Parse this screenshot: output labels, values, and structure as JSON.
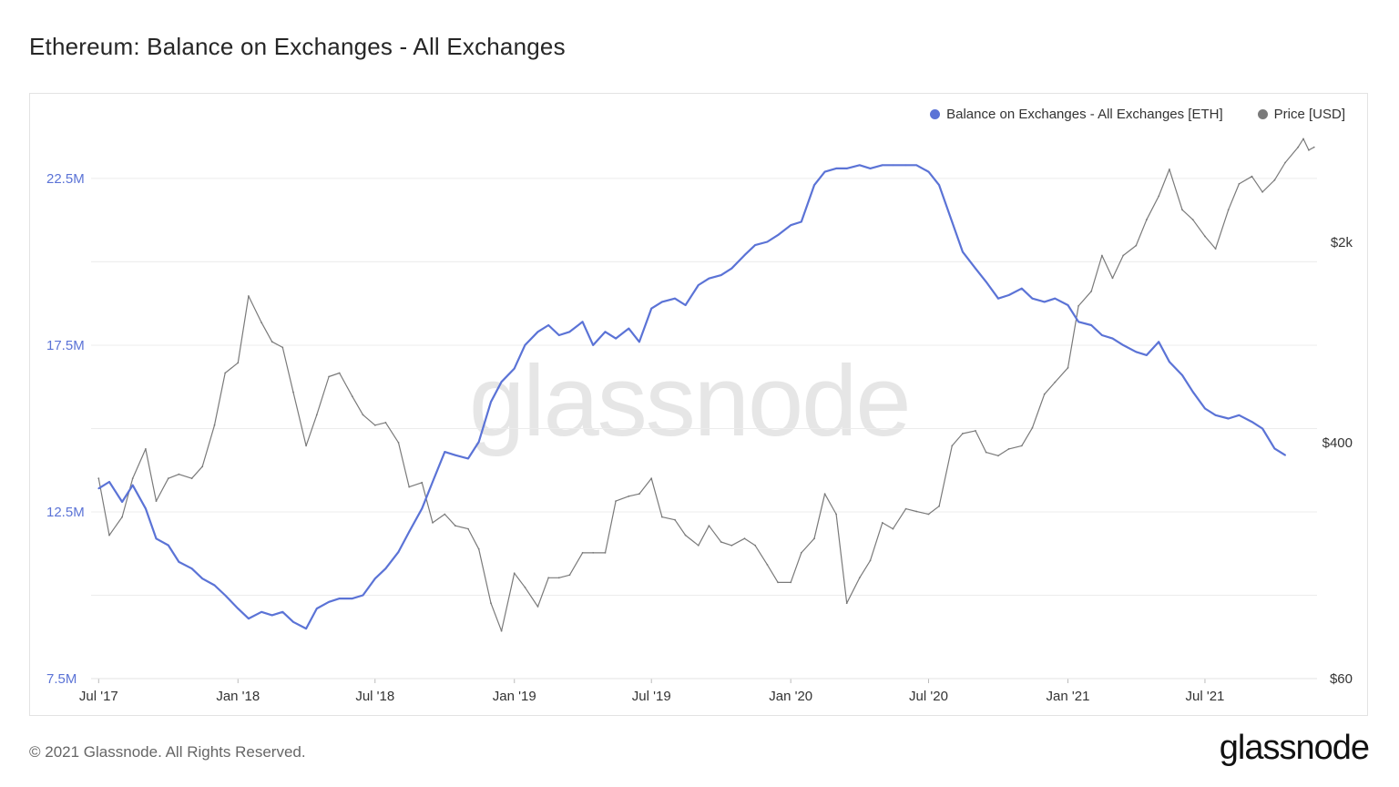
{
  "title": "Ethereum: Balance on Exchanges - All Exchanges",
  "footer": {
    "copyright": "© 2021 Glassnode. All Rights Reserved.",
    "logo": "glassnode"
  },
  "watermark": "glassnode",
  "colors": {
    "balance": "#5b73d6",
    "price": "#7a7a7a",
    "grid": "#ececec"
  },
  "chart_data": {
    "type": "line",
    "title": "Ethereum: Balance on Exchanges - All Exchanges",
    "legend_position": "top-right",
    "grid": true,
    "x_ticks": [
      "Jul '17",
      "Jan '18",
      "Jul '18",
      "Jan '19",
      "Jul '19",
      "Jan '20",
      "Jul '20",
      "Jan '21",
      "Jul '21"
    ],
    "y_left": {
      "ticks": [
        "7.5M",
        "12.5M",
        "17.5M",
        "22.5M"
      ],
      "range": [
        7500000,
        24000000
      ]
    },
    "y_right": {
      "scale": "log",
      "ticks": [
        "$60",
        "$400",
        "$2k"
      ],
      "range": [
        60,
        5000
      ]
    },
    "series": [
      {
        "name": "Balance on Exchanges - All Exchanges [ETH]",
        "axis": "left",
        "points": [
          [
            "2017-07-01",
            13200000
          ],
          [
            "2017-07-15",
            13400000
          ],
          [
            "2017-08-01",
            12800000
          ],
          [
            "2017-08-15",
            13300000
          ],
          [
            "2017-09-01",
            12600000
          ],
          [
            "2017-09-15",
            11700000
          ],
          [
            "2017-10-01",
            11500000
          ],
          [
            "2017-10-15",
            11000000
          ],
          [
            "2017-11-01",
            10800000
          ],
          [
            "2017-11-15",
            10500000
          ],
          [
            "2017-12-01",
            10300000
          ],
          [
            "2017-12-15",
            10000000
          ],
          [
            "2018-01-01",
            9600000
          ],
          [
            "2018-01-15",
            9300000
          ],
          [
            "2018-02-01",
            9500000
          ],
          [
            "2018-02-15",
            9400000
          ],
          [
            "2018-03-01",
            9500000
          ],
          [
            "2018-03-15",
            9200000
          ],
          [
            "2018-04-01",
            9000000
          ],
          [
            "2018-04-15",
            9600000
          ],
          [
            "2018-05-01",
            9800000
          ],
          [
            "2018-05-15",
            9900000
          ],
          [
            "2018-06-01",
            9900000
          ],
          [
            "2018-06-15",
            10000000
          ],
          [
            "2018-07-01",
            10500000
          ],
          [
            "2018-07-15",
            10800000
          ],
          [
            "2018-08-01",
            11300000
          ],
          [
            "2018-08-15",
            11900000
          ],
          [
            "2018-09-01",
            12600000
          ],
          [
            "2018-09-15",
            13400000
          ],
          [
            "2018-10-01",
            14300000
          ],
          [
            "2018-10-15",
            14200000
          ],
          [
            "2018-11-01",
            14100000
          ],
          [
            "2018-11-15",
            14600000
          ],
          [
            "2018-12-01",
            15800000
          ],
          [
            "2018-12-15",
            16400000
          ],
          [
            "2019-01-01",
            16800000
          ],
          [
            "2019-01-15",
            17500000
          ],
          [
            "2019-02-01",
            17900000
          ],
          [
            "2019-02-15",
            18100000
          ],
          [
            "2019-03-01",
            17800000
          ],
          [
            "2019-03-15",
            17900000
          ],
          [
            "2019-04-01",
            18200000
          ],
          [
            "2019-04-15",
            17500000
          ],
          [
            "2019-05-01",
            17900000
          ],
          [
            "2019-05-15",
            17700000
          ],
          [
            "2019-06-01",
            18000000
          ],
          [
            "2019-06-15",
            17600000
          ],
          [
            "2019-07-01",
            18600000
          ],
          [
            "2019-07-15",
            18800000
          ],
          [
            "2019-08-01",
            18900000
          ],
          [
            "2019-08-15",
            18700000
          ],
          [
            "2019-09-01",
            19300000
          ],
          [
            "2019-09-15",
            19500000
          ],
          [
            "2019-10-01",
            19600000
          ],
          [
            "2019-10-15",
            19800000
          ],
          [
            "2019-11-01",
            20200000
          ],
          [
            "2019-11-15",
            20500000
          ],
          [
            "2019-12-01",
            20600000
          ],
          [
            "2019-12-15",
            20800000
          ],
          [
            "2020-01-01",
            21100000
          ],
          [
            "2020-01-15",
            21200000
          ],
          [
            "2020-02-01",
            22300000
          ],
          [
            "2020-02-15",
            22700000
          ],
          [
            "2020-03-01",
            22800000
          ],
          [
            "2020-03-15",
            22800000
          ],
          [
            "2020-04-01",
            22900000
          ],
          [
            "2020-04-15",
            22800000
          ],
          [
            "2020-05-01",
            22900000
          ],
          [
            "2020-05-15",
            22900000
          ],
          [
            "2020-06-01",
            22900000
          ],
          [
            "2020-06-15",
            22900000
          ],
          [
            "2020-07-01",
            22700000
          ],
          [
            "2020-07-15",
            22300000
          ],
          [
            "2020-08-01",
            21200000
          ],
          [
            "2020-08-15",
            20300000
          ],
          [
            "2020-09-01",
            19800000
          ],
          [
            "2020-09-15",
            19400000
          ],
          [
            "2020-10-01",
            18900000
          ],
          [
            "2020-10-15",
            19000000
          ],
          [
            "2020-11-01",
            19200000
          ],
          [
            "2020-11-15",
            18900000
          ],
          [
            "2020-12-01",
            18800000
          ],
          [
            "2020-12-15",
            18900000
          ],
          [
            "2021-01-01",
            18700000
          ],
          [
            "2021-01-15",
            18200000
          ],
          [
            "2021-02-01",
            18100000
          ],
          [
            "2021-02-15",
            17800000
          ],
          [
            "2021-03-01",
            17700000
          ],
          [
            "2021-03-15",
            17500000
          ],
          [
            "2021-04-01",
            17300000
          ],
          [
            "2021-04-15",
            17200000
          ],
          [
            "2021-05-01",
            17600000
          ],
          [
            "2021-05-15",
            17000000
          ],
          [
            "2021-06-01",
            16600000
          ],
          [
            "2021-06-15",
            16100000
          ],
          [
            "2021-07-01",
            15600000
          ],
          [
            "2021-07-15",
            15400000
          ],
          [
            "2021-08-01",
            15300000
          ],
          [
            "2021-08-15",
            15400000
          ],
          [
            "2021-09-01",
            15200000
          ],
          [
            "2021-09-15",
            15000000
          ],
          [
            "2021-10-01",
            14400000
          ],
          [
            "2021-10-15",
            14200000
          ]
        ]
      },
      {
        "name": "Price [USD]",
        "axis": "right",
        "points": [
          [
            "2017-07-01",
            300
          ],
          [
            "2017-07-15",
            190
          ],
          [
            "2017-08-01",
            220
          ],
          [
            "2017-08-15",
            300
          ],
          [
            "2017-09-01",
            380
          ],
          [
            "2017-09-15",
            250
          ],
          [
            "2017-10-01",
            300
          ],
          [
            "2017-10-15",
            310
          ],
          [
            "2017-11-01",
            300
          ],
          [
            "2017-11-15",
            330
          ],
          [
            "2017-12-01",
            460
          ],
          [
            "2017-12-15",
            700
          ],
          [
            "2018-01-01",
            760
          ],
          [
            "2018-01-15",
            1300
          ],
          [
            "2018-02-01",
            1050
          ],
          [
            "2018-02-15",
            900
          ],
          [
            "2018-03-01",
            860
          ],
          [
            "2018-03-15",
            600
          ],
          [
            "2018-04-01",
            390
          ],
          [
            "2018-04-15",
            500
          ],
          [
            "2018-05-01",
            680
          ],
          [
            "2018-05-15",
            700
          ],
          [
            "2018-06-01",
            580
          ],
          [
            "2018-06-15",
            500
          ],
          [
            "2018-07-01",
            460
          ],
          [
            "2018-07-15",
            470
          ],
          [
            "2018-08-01",
            400
          ],
          [
            "2018-08-15",
            280
          ],
          [
            "2018-09-01",
            290
          ],
          [
            "2018-09-15",
            210
          ],
          [
            "2018-10-01",
            225
          ],
          [
            "2018-10-15",
            205
          ],
          [
            "2018-11-01",
            200
          ],
          [
            "2018-11-15",
            170
          ],
          [
            "2018-12-01",
            110
          ],
          [
            "2018-12-15",
            88
          ],
          [
            "2019-01-01",
            140
          ],
          [
            "2019-01-15",
            125
          ],
          [
            "2019-02-01",
            107
          ],
          [
            "2019-02-15",
            135
          ],
          [
            "2019-03-01",
            135
          ],
          [
            "2019-03-15",
            138
          ],
          [
            "2019-04-01",
            165
          ],
          [
            "2019-04-15",
            165
          ],
          [
            "2019-05-01",
            165
          ],
          [
            "2019-05-15",
            250
          ],
          [
            "2019-06-01",
            260
          ],
          [
            "2019-06-15",
            265
          ],
          [
            "2019-07-01",
            300
          ],
          [
            "2019-07-15",
            220
          ],
          [
            "2019-08-01",
            215
          ],
          [
            "2019-08-15",
            190
          ],
          [
            "2019-09-01",
            175
          ],
          [
            "2019-09-15",
            205
          ],
          [
            "2019-10-01",
            180
          ],
          [
            "2019-10-15",
            175
          ],
          [
            "2019-11-01",
            185
          ],
          [
            "2019-11-15",
            175
          ],
          [
            "2019-12-01",
            150
          ],
          [
            "2019-12-15",
            130
          ],
          [
            "2020-01-01",
            130
          ],
          [
            "2020-01-15",
            165
          ],
          [
            "2020-02-01",
            185
          ],
          [
            "2020-02-15",
            265
          ],
          [
            "2020-03-01",
            225
          ],
          [
            "2020-03-15",
            110
          ],
          [
            "2020-04-01",
            135
          ],
          [
            "2020-04-15",
            155
          ],
          [
            "2020-05-01",
            210
          ],
          [
            "2020-05-15",
            200
          ],
          [
            "2020-06-01",
            235
          ],
          [
            "2020-06-15",
            230
          ],
          [
            "2020-07-01",
            225
          ],
          [
            "2020-07-15",
            240
          ],
          [
            "2020-08-01",
            390
          ],
          [
            "2020-08-15",
            430
          ],
          [
            "2020-09-01",
            440
          ],
          [
            "2020-09-15",
            370
          ],
          [
            "2020-10-01",
            360
          ],
          [
            "2020-10-15",
            380
          ],
          [
            "2020-11-01",
            390
          ],
          [
            "2020-11-15",
            450
          ],
          [
            "2020-12-01",
            590
          ],
          [
            "2020-12-15",
            650
          ],
          [
            "2021-01-01",
            730
          ],
          [
            "2021-01-15",
            1200
          ],
          [
            "2021-02-01",
            1350
          ],
          [
            "2021-02-15",
            1800
          ],
          [
            "2021-03-01",
            1500
          ],
          [
            "2021-03-15",
            1800
          ],
          [
            "2021-04-01",
            1950
          ],
          [
            "2021-04-15",
            2400
          ],
          [
            "2021-05-01",
            2900
          ],
          [
            "2021-05-15",
            3600
          ],
          [
            "2021-06-01",
            2600
          ],
          [
            "2021-06-15",
            2400
          ],
          [
            "2021-07-01",
            2100
          ],
          [
            "2021-07-15",
            1900
          ],
          [
            "2021-08-01",
            2600
          ],
          [
            "2021-08-15",
            3200
          ],
          [
            "2021-09-01",
            3400
          ],
          [
            "2021-09-15",
            3000
          ],
          [
            "2021-10-01",
            3300
          ],
          [
            "2021-10-15",
            3800
          ],
          [
            "2021-11-01",
            4300
          ],
          [
            "2021-11-08",
            4600
          ],
          [
            "2021-11-15",
            4200
          ],
          [
            "2021-11-22",
            4300
          ]
        ]
      }
    ]
  }
}
